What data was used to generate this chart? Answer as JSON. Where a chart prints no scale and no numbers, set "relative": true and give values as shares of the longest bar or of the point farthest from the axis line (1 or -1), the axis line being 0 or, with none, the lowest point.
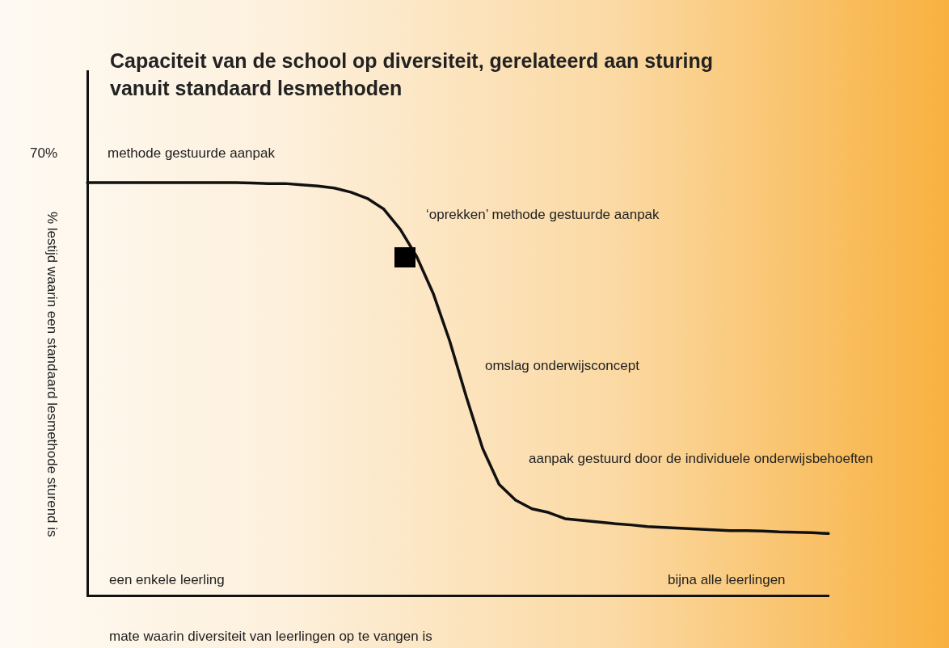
{
  "chart_data": {
    "type": "line",
    "title": "Capaciteit van de school op diversiteit, gerelateerd aan sturing vanuit standaard lesmethoden",
    "xlabel": "mate waarin diversiteit van leerlingen op te vangen is",
    "ylabel": "% lestijd waarin een standaard lesmethode sturend is",
    "relative": true,
    "grid": false,
    "legend": false,
    "categories": [
      null,
      null,
      null,
      null,
      null,
      null,
      null,
      null,
      null,
      null,
      null,
      null,
      null,
      null,
      null,
      null,
      null,
      null,
      null,
      null,
      null,
      null,
      null,
      null,
      null,
      null,
      null,
      null,
      null,
      null,
      null,
      null,
      null,
      null,
      null,
      null,
      null,
      null,
      null,
      null,
      null,
      null,
      null,
      null,
      null,
      null
    ],
    "series": [
      {
        "color": "#111111",
        "marker": "none",
        "line_style": "solid",
        "values": [
          1.0,
          1.0,
          1.0,
          1.0,
          1.0,
          1.0,
          1.0,
          1.0,
          1.0,
          1.0,
          0.999,
          0.998,
          0.998,
          0.995,
          0.992,
          0.987,
          0.977,
          0.962,
          0.936,
          0.887,
          0.821,
          0.732,
          0.617,
          0.483,
          0.357,
          0.27,
          0.232,
          0.211,
          0.202,
          0.187,
          0.183,
          0.179,
          0.175,
          0.172,
          0.168,
          0.166,
          0.164,
          0.162,
          0.16,
          0.158,
          0.158,
          0.157,
          0.155,
          0.154,
          0.153,
          0.151
        ]
      }
    ],
    "annotations": [
      "70%",
      "methode gestuurde aanpak",
      "‘oprekken’ methode gestuurde aanpak",
      "omslag onderwijsconcept",
      "aanpak gestuurd door de individuele onderwijsbehoeften",
      "een enkele leerling",
      "bijna alle leerlingen"
    ]
  }
}
